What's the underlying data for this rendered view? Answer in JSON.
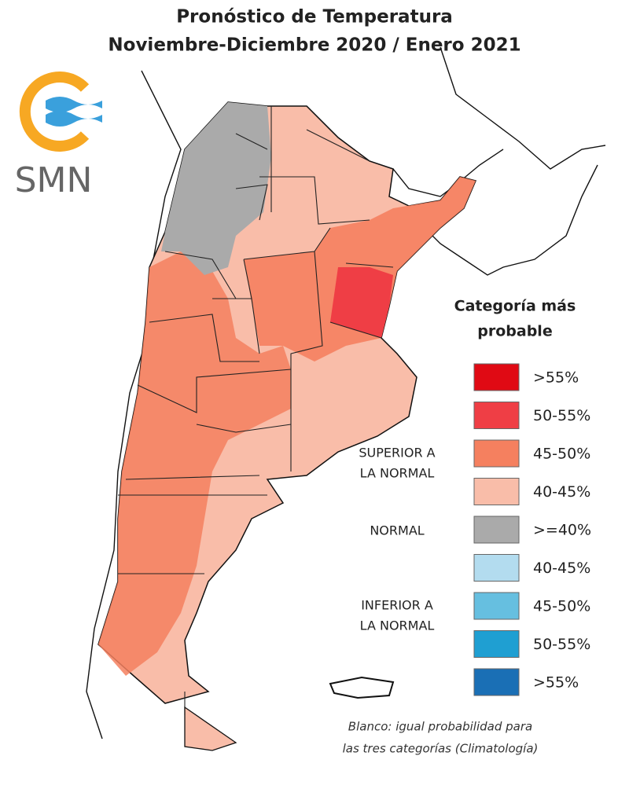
{
  "header": {
    "title": [
      "Pronóstico de Temperatura",
      "Noviembre-Diciembre 2020 / Enero 2021"
    ]
  },
  "logo": {
    "text": "SMN"
  },
  "legend": {
    "title": [
      "Categoría más",
      "probable"
    ],
    "groups": [
      {
        "label": [
          "SUPERIOR A",
          "LA NORMAL"
        ],
        "items": [
          {
            "label": ">55%",
            "color": "#e00a14"
          },
          {
            "label": "50-55%",
            "color": "#ef3e45"
          },
          {
            "label": "45-50%",
            "color": "#f5805f"
          },
          {
            "label": "40-45%",
            "color": "#f9bda9"
          }
        ]
      },
      {
        "label": [
          "NORMAL"
        ],
        "items": [
          {
            "label": ">=40%",
            "color": "#aaaaaa"
          }
        ]
      },
      {
        "label": [
          "INFERIOR A",
          "LA NORMAL"
        ],
        "items": [
          {
            "label": "40-45%",
            "color": "#b3dcef"
          },
          {
            "label": "45-50%",
            "color": "#66bfe0"
          },
          {
            "label": "50-55%",
            "color": "#1f9fd2"
          },
          {
            "label": ">55%",
            "color": "#1a6fb5"
          }
        ]
      }
    ]
  },
  "footnote": [
    "Blanco: igual probabilidad para",
    "las tres categorías (Climatología)"
  ]
}
